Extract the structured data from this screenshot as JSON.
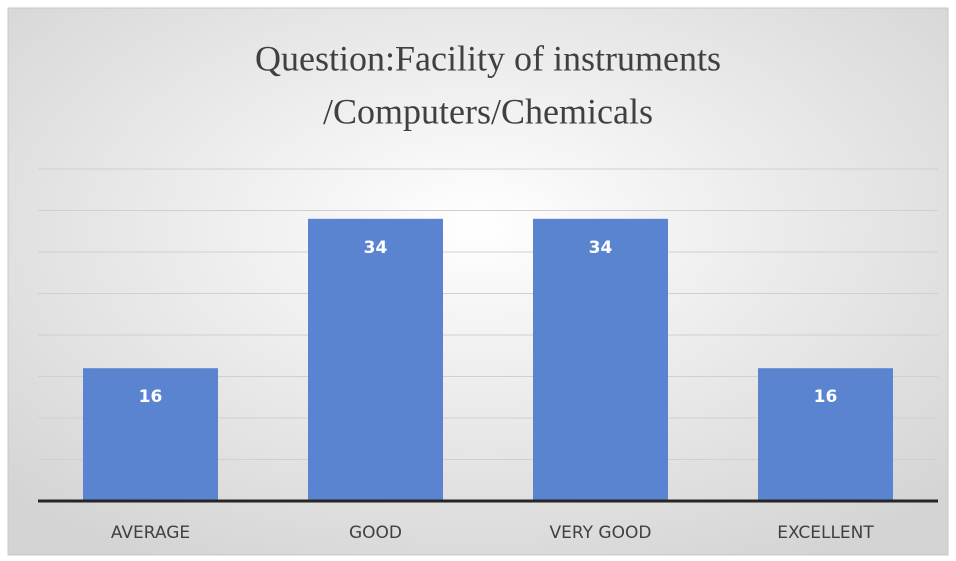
{
  "chart_data": {
    "type": "bar",
    "title": [
      "Question:Facility of instruments",
      "/Computers/Chemicals"
    ],
    "categories": [
      "AVERAGE",
      "GOOD",
      "VERY GOOD",
      "EXCELLENT"
    ],
    "values": [
      16,
      34,
      34,
      16
    ],
    "color": "#5b84d0",
    "ylim": [
      0,
      40
    ],
    "yticks": [
      0,
      5,
      10,
      15,
      20,
      25,
      30,
      35,
      40
    ],
    "grid": true
  }
}
